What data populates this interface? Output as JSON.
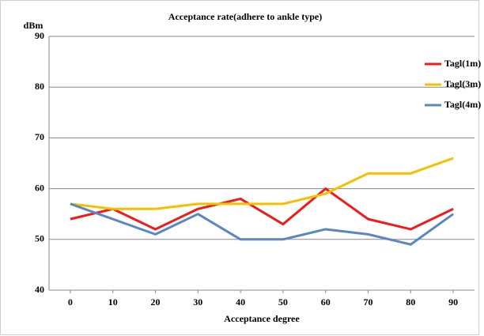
{
  "chart_data": {
    "type": "line",
    "title": "Acceptance rate(adhere to ankle type)",
    "y_label": "dBm",
    "x_label": "Acceptance degree",
    "x": [
      0,
      10,
      20,
      30,
      40,
      50,
      60,
      70,
      80,
      90
    ],
    "xlim": [
      -5,
      95
    ],
    "xticks": [
      0,
      10,
      20,
      30,
      40,
      50,
      60,
      70,
      80,
      90
    ],
    "ylim": [
      40,
      90
    ],
    "yticks": [
      40,
      50,
      60,
      70,
      80,
      90
    ],
    "grid": true,
    "legend": "right",
    "series": [
      {
        "name": "Tagl(1m)",
        "color": "#ee1c1c",
        "values": [
          54,
          56,
          52,
          56,
          58,
          53,
          60,
          54,
          52,
          56
        ]
      },
      {
        "name": "Tagl(3m)",
        "color": "#f5c000",
        "values": [
          57,
          56,
          56,
          57,
          57,
          57,
          59,
          63,
          63,
          66
        ]
      },
      {
        "name": "Tagl(4m)",
        "color": "#5b87c0",
        "values": [
          57,
          54,
          51,
          55,
          50,
          50,
          52,
          51,
          49,
          55
        ]
      }
    ]
  }
}
